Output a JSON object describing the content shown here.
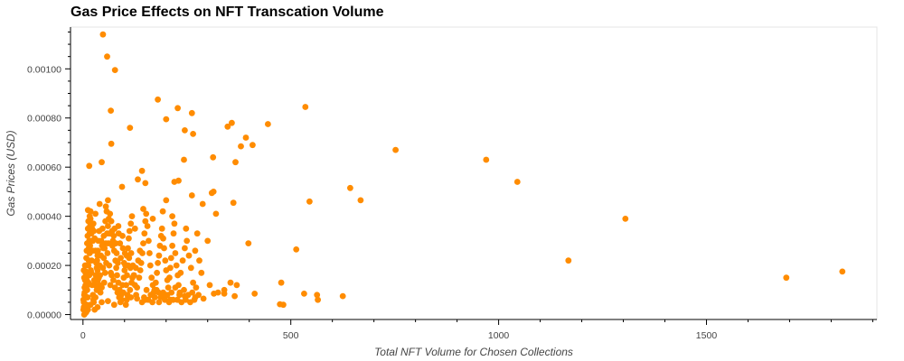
{
  "chart_data": {
    "type": "scatter",
    "title": "Gas Price Effects on NFT Transcation Volume",
    "xlabel": "Total NFT Volume for Chosen Collections",
    "ylabel": "Gas Prices (USD)",
    "xlim": [
      -30,
      1910
    ],
    "ylim": [
      -2e-05,
      0.00117
    ],
    "x_ticks": [
      0,
      500,
      1000,
      1500
    ],
    "x_tick_labels": [
      "0",
      "500",
      "1000",
      "1500"
    ],
    "y_ticks": [
      0.0,
      0.0002,
      0.0004,
      0.0006,
      0.0008,
      0.001
    ],
    "y_tick_labels": [
      "0.00000",
      "0.00020",
      "0.00040",
      "0.00060",
      "0.00080",
      "0.00100"
    ],
    "grid": false,
    "marker_color": "#ff8c00",
    "points": [
      [
        48,
        0.00114
      ],
      [
        58,
        0.00105
      ],
      [
        77,
        0.000995
      ],
      [
        67,
        0.00083
      ],
      [
        180,
        0.000875
      ],
      [
        228,
        0.00084
      ],
      [
        262,
        0.00082
      ],
      [
        200,
        0.000795
      ],
      [
        113,
        0.00076
      ],
      [
        245,
        0.00075
      ],
      [
        265,
        0.000735
      ],
      [
        535,
        0.000845
      ],
      [
        358,
        0.00078
      ],
      [
        348,
        0.000765
      ],
      [
        445,
        0.000775
      ],
      [
        392,
        0.00072
      ],
      [
        380,
        0.000685
      ],
      [
        408,
        0.00069
      ],
      [
        68,
        0.000695
      ],
      [
        752,
        0.00067
      ],
      [
        970,
        0.00063
      ],
      [
        1045,
        0.00054
      ],
      [
        1305,
        0.00039
      ],
      [
        1168,
        0.00022
      ],
      [
        1692,
        0.00015
      ],
      [
        1827,
        0.000175
      ],
      [
        15,
        0.000605
      ],
      [
        45,
        0.00062
      ],
      [
        243,
        0.00063
      ],
      [
        313,
        0.00064
      ],
      [
        367,
        0.00062
      ],
      [
        142,
        0.000585
      ],
      [
        132,
        0.00055
      ],
      [
        150,
        0.000535
      ],
      [
        94,
        0.00052
      ],
      [
        230,
        0.000545
      ],
      [
        220,
        0.00054
      ],
      [
        643,
        0.000515
      ],
      [
        668,
        0.000465
      ],
      [
        545,
        0.00046
      ],
      [
        362,
        0.000455
      ],
      [
        314,
        0.0005
      ],
      [
        310,
        0.000495
      ],
      [
        262,
        0.000485
      ],
      [
        288,
        0.00045
      ],
      [
        200,
        0.000465
      ],
      [
        320,
        0.00041
      ],
      [
        398,
        0.00029
      ],
      [
        513,
        0.000265
      ],
      [
        625,
        7.5e-05
      ],
      [
        563,
        8e-05
      ],
      [
        565,
        6e-05
      ],
      [
        532,
        8.5e-05
      ],
      [
        477,
        0.00013
      ],
      [
        474,
        4.2e-05
      ],
      [
        482,
        4e-05
      ],
      [
        413,
        8.5e-05
      ],
      [
        370,
        0.00012
      ],
      [
        355,
        0.00013
      ],
      [
        340,
        0.0001
      ],
      [
        325,
        9e-05
      ],
      [
        315,
        8.5e-05
      ],
      [
        340,
        8.5e-05
      ],
      [
        365,
        7.5e-05
      ],
      [
        290,
        6.5e-05
      ],
      [
        270,
        7e-05
      ],
      [
        245,
        7.5e-05
      ],
      [
        232,
        8e-05
      ],
      [
        210,
        6e-05
      ],
      [
        190,
        7.5e-05
      ],
      [
        182,
        9e-05
      ],
      [
        172,
        0.0001
      ],
      [
        150,
        6e-05
      ],
      [
        130,
        6.5e-05
      ],
      [
        115,
        7e-05
      ],
      [
        105,
        6e-05
      ],
      [
        90,
        5e-05
      ],
      [
        75,
        4e-05
      ],
      [
        60,
        5.5e-05
      ],
      [
        45,
        5e-05
      ],
      [
        35,
        3e-05
      ],
      [
        25,
        6e-05
      ],
      [
        18,
        4e-05
      ],
      [
        12,
        2e-05
      ],
      [
        8,
        1e-05
      ],
      [
        5,
        5e-06
      ],
      [
        3,
        0.0
      ],
      [
        2,
        3e-05
      ],
      [
        1,
        6e-05
      ],
      [
        4,
        9e-05
      ],
      [
        6,
        0.00012
      ],
      [
        3,
        0.00015
      ],
      [
        2,
        0.00018
      ],
      [
        5,
        0.0002
      ],
      [
        7,
        0.000175
      ],
      [
        9,
        0.00014
      ],
      [
        10,
        0.0001
      ],
      [
        11,
        7e-05
      ],
      [
        13,
        0.00013
      ],
      [
        15,
        0.00016
      ],
      [
        14,
        0.00022
      ],
      [
        16,
        0.00025
      ],
      [
        17,
        0.00028
      ],
      [
        18,
        0.0003
      ],
      [
        20,
        0.00033
      ],
      [
        22,
        0.00035
      ],
      [
        14,
        0.00038
      ],
      [
        16,
        0.0004
      ],
      [
        18,
        0.00042
      ],
      [
        12,
        0.000425
      ],
      [
        25,
        0.00037
      ],
      [
        28,
        0.00031
      ],
      [
        30,
        0.00026
      ],
      [
        32,
        0.00021
      ],
      [
        35,
        0.00018
      ],
      [
        38,
        0.00015
      ],
      [
        40,
        0.00012
      ],
      [
        42,
        9e-05
      ],
      [
        45,
        0.00011
      ],
      [
        48,
        0.00019
      ],
      [
        50,
        0.00023
      ],
      [
        52,
        0.00027
      ],
      [
        55,
        0.00029
      ],
      [
        58,
        0.00033
      ],
      [
        60,
        0.00036
      ],
      [
        62,
        0.00039
      ],
      [
        65,
        0.00041
      ],
      [
        68,
        0.00038
      ],
      [
        70,
        0.00034
      ],
      [
        72,
        0.0003
      ],
      [
        75,
        0.00026
      ],
      [
        78,
        0.00022
      ],
      [
        80,
        0.00019
      ],
      [
        82,
        0.00016
      ],
      [
        85,
        0.00013
      ],
      [
        88,
        0.0001
      ],
      [
        92,
        8e-05
      ],
      [
        95,
        0.00012
      ],
      [
        98,
        0.00015
      ],
      [
        100,
        0.00018
      ],
      [
        102,
        0.0002
      ],
      [
        105,
        0.00024
      ],
      [
        108,
        0.00027
      ],
      [
        110,
        0.00031
      ],
      [
        112,
        0.00034
      ],
      [
        115,
        0.00037
      ],
      [
        118,
        0.0004
      ],
      [
        120,
        0.0002
      ],
      [
        122,
        0.00016
      ],
      [
        125,
        0.00012
      ],
      [
        128,
        8e-05
      ],
      [
        130,
        0.00011
      ],
      [
        135,
        0.00015
      ],
      [
        138,
        0.00018
      ],
      [
        140,
        0.00021
      ],
      [
        143,
        0.00025
      ],
      [
        145,
        0.00029
      ],
      [
        148,
        0.00033
      ],
      [
        150,
        0.00038
      ],
      [
        152,
        0.00041
      ],
      [
        155,
        0.00036
      ],
      [
        158,
        0.0003
      ],
      [
        160,
        0.00025
      ],
      [
        162,
        0.0002
      ],
      [
        165,
        0.00015
      ],
      [
        168,
        0.00012
      ],
      [
        170,
        9e-05
      ],
      [
        175,
        0.00013
      ],
      [
        178,
        0.00017
      ],
      [
        180,
        0.00021
      ],
      [
        183,
        0.00024
      ],
      [
        185,
        0.00028
      ],
      [
        188,
        0.00032
      ],
      [
        190,
        0.00035
      ],
      [
        193,
        0.00031
      ],
      [
        195,
        0.00027
      ],
      [
        198,
        0.00022
      ],
      [
        200,
        0.00018
      ],
      [
        203,
        0.00014
      ],
      [
        205,
        0.00011
      ],
      [
        208,
        0.00015
      ],
      [
        210,
        0.00019
      ],
      [
        212,
        0.00023
      ],
      [
        215,
        0.00028
      ],
      [
        218,
        0.00033
      ],
      [
        220,
        0.00037
      ],
      [
        222,
        0.00025
      ],
      [
        225,
        0.0002
      ],
      [
        228,
        0.00016
      ],
      [
        230,
        0.00012
      ],
      [
        235,
        0.00017
      ],
      [
        240,
        0.00022
      ],
      [
        245,
        0.00027
      ],
      [
        250,
        0.0003
      ],
      [
        255,
        0.00024
      ],
      [
        260,
        0.00019
      ],
      [
        265,
        0.00013
      ],
      [
        270,
        0.00026
      ],
      [
        275,
        0.00033
      ],
      [
        280,
        0.00022
      ],
      [
        285,
        0.00017
      ],
      [
        300,
        0.0003
      ],
      [
        305,
        0.00012
      ],
      [
        248,
        0.00035
      ],
      [
        215,
        0.0004
      ],
      [
        192,
        0.00042
      ],
      [
        168,
        0.00039
      ],
      [
        145,
        0.00043
      ],
      [
        125,
        0.00035
      ],
      [
        95,
        0.00032
      ],
      [
        85,
        0.00036
      ],
      [
        55,
        0.00044
      ],
      [
        40,
        0.00045
      ],
      [
        60,
        0.000465
      ],
      [
        30,
        0.00041
      ],
      [
        35,
        0.00024
      ],
      [
        20,
        0.00017
      ],
      [
        22,
        0.00012
      ],
      [
        24,
        8e-05
      ],
      [
        26,
        5e-05
      ],
      [
        28,
        2e-05
      ],
      [
        30,
        7e-05
      ],
      [
        33,
        0.0001
      ],
      [
        36,
        0.00014
      ],
      [
        40,
        0.0002
      ],
      [
        43,
        0.00024
      ],
      [
        46,
        0.00028
      ],
      [
        50,
        0.00032
      ],
      [
        54,
        0.00038
      ],
      [
        57,
        0.00042
      ],
      [
        63,
        0.0002
      ],
      [
        67,
        0.00017
      ],
      [
        73,
        0.00014
      ],
      [
        77,
        0.00011
      ],
      [
        83,
        9e-05
      ],
      [
        87,
        7e-05
      ],
      [
        93,
        6e-05
      ],
      [
        97,
        9e-05
      ],
      [
        103,
        4e-05
      ],
      [
        107,
        8e-05
      ],
      [
        113,
        0.0001
      ],
      [
        117,
        0.00013
      ],
      [
        123,
        0.00016
      ],
      [
        127,
        0.00019
      ],
      [
        133,
        0.00022
      ],
      [
        137,
        0.00026
      ],
      [
        142,
        5e-05
      ],
      [
        147,
        7e-05
      ],
      [
        153,
        0.0001
      ],
      [
        157,
        6e-05
      ],
      [
        163,
        8e-05
      ],
      [
        167,
        5e-05
      ],
      [
        173,
        7e-05
      ],
      [
        177,
        0.0001
      ],
      [
        183,
        5e-05
      ],
      [
        187,
        7e-05
      ],
      [
        193,
        9e-05
      ],
      [
        197,
        6e-05
      ],
      [
        203,
        8e-05
      ],
      [
        207,
        5e-05
      ],
      [
        213,
        9e-05
      ],
      [
        217,
        6e-05
      ],
      [
        222,
        0.00011
      ],
      [
        227,
        6e-05
      ],
      [
        233,
        9e-05
      ],
      [
        237,
        5e-05
      ],
      [
        243,
        0.0001
      ],
      [
        247,
        6e-05
      ],
      [
        253,
        8e-05
      ],
      [
        258,
        5e-05
      ],
      [
        263,
        9e-05
      ],
      [
        268,
        6e-05
      ],
      [
        272,
        0.00011
      ],
      [
        278,
        8e-05
      ],
      [
        1,
        2e-05
      ],
      [
        2,
        5e-05
      ],
      [
        3,
        8e-05
      ],
      [
        4,
        0.00011
      ],
      [
        5,
        0.00014
      ],
      [
        6,
        0.00017
      ],
      [
        7,
        0.0002
      ],
      [
        8,
        0.00023
      ],
      [
        9,
        0.00026
      ],
      [
        10,
        0.00029
      ],
      [
        11,
        0.00032
      ],
      [
        12,
        0.00035
      ],
      [
        13,
        0.00038
      ],
      [
        9,
        4e-05
      ],
      [
        10,
        7e-05
      ],
      [
        11,
        0.00012
      ],
      [
        12,
        0.00016
      ],
      [
        13,
        0.0002
      ],
      [
        14,
        0.00027
      ],
      [
        15,
        0.0003
      ],
      [
        16,
        0.00033
      ],
      [
        17,
        0.00036
      ],
      [
        18,
        0.00039
      ],
      [
        19,
        0.00018
      ],
      [
        21,
        0.00022
      ],
      [
        23,
        0.00026
      ],
      [
        24,
        0.0003
      ],
      [
        26,
        0.00034
      ],
      [
        27,
        0.00014
      ],
      [
        29,
        0.00012
      ],
      [
        31,
        0.00016
      ],
      [
        33,
        0.00019
      ],
      [
        34,
        0.00022
      ],
      [
        36,
        0.00026
      ],
      [
        37,
        0.0003
      ],
      [
        39,
        0.00034
      ],
      [
        41,
        0.00016
      ],
      [
        44,
        0.0003
      ],
      [
        47,
        0.00035
      ],
      [
        49,
        0.00027
      ],
      [
        51,
        0.00013
      ],
      [
        53,
        0.00017
      ],
      [
        56,
        0.00021
      ],
      [
        59,
        0.00025
      ],
      [
        61,
        0.00029
      ],
      [
        64,
        0.00033
      ],
      [
        66,
        0.00012
      ],
      [
        69,
        0.00016
      ],
      [
        71,
        0.00028
      ],
      [
        74,
        0.00032
      ],
      [
        76,
        0.00035
      ],
      [
        79,
        0.00029
      ],
      [
        81,
        0.00025
      ],
      [
        84,
        0.00021
      ],
      [
        86,
        0.00033
      ],
      [
        89,
        0.00029
      ],
      [
        91,
        0.00023
      ],
      [
        96,
        0.00027
      ],
      [
        99,
        0.00021
      ],
      [
        101,
        0.00025
      ],
      [
        104,
        0.00012
      ],
      [
        106,
        0.00016
      ],
      [
        109,
        0.0002
      ],
      [
        111,
        0.00023
      ],
      [
        114,
        0.00019
      ],
      [
        116,
        0.00025
      ],
      [
        119,
        0.00015
      ]
    ]
  }
}
